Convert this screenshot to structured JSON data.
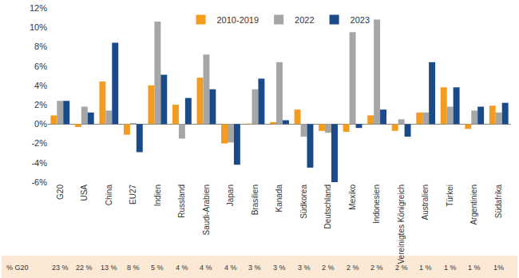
{
  "chart_data": {
    "type": "bar",
    "categories": [
      "G20",
      "USA",
      "China",
      "EU27",
      "Indien",
      "Russland",
      "Saudi-Arabien",
      "Japan",
      "Brasilien",
      "Kanada",
      "Südkorea",
      "Deutschland",
      "Mexiko",
      "Indonesien",
      "Vereinigtes Königreich",
      "Australien",
      "Türkei",
      "Argentinien",
      "Südafrika"
    ],
    "series": [
      {
        "name": "2010-2019",
        "color": "#f39c1f",
        "values": [
          0.9,
          -0.3,
          4.4,
          -1.1,
          4.0,
          2.0,
          4.8,
          -2.0,
          0.05,
          0.2,
          1.5,
          -0.7,
          -0.8,
          0.9,
          -0.7,
          1.2,
          3.8,
          -0.5,
          1.9
        ]
      },
      {
        "name": "2022",
        "color": "#a6a6a6",
        "values": [
          2.4,
          1.8,
          1.4,
          0.1,
          10.6,
          -1.5,
          7.2,
          -1.9,
          3.6,
          6.4,
          -1.3,
          -0.9,
          9.5,
          10.8,
          0.5,
          1.2,
          1.8,
          1.4,
          1.2
        ]
      },
      {
        "name": "2023",
        "color": "#1b4a8a",
        "values": [
          2.4,
          1.2,
          8.4,
          -2.9,
          5.1,
          2.7,
          3.6,
          -4.2,
          4.7,
          0.4,
          -4.5,
          -6.0,
          -0.4,
          1.5,
          -1.3,
          6.4,
          3.8,
          1.8,
          2.2
        ]
      }
    ],
    "ylim": [
      -6,
      12
    ],
    "yticks": [
      {
        "value": -6,
        "label": "-6%"
      },
      {
        "value": -4,
        "label": "-4%"
      },
      {
        "value": -2,
        "label": "-2%"
      },
      {
        "value": 0,
        "label": "0%"
      },
      {
        "value": 2,
        "label": "2%"
      },
      {
        "value": 4,
        "label": "4%"
      },
      {
        "value": 6,
        "label": "6%"
      },
      {
        "value": 8,
        "label": "8%"
      },
      {
        "value": 10,
        "label": "10%"
      },
      {
        "value": 12,
        "label": "12%"
      }
    ],
    "grid": false,
    "legend": "top",
    "footer_row": {
      "label": "% G20",
      "values": [
        23,
        22,
        13,
        8,
        5,
        4,
        4,
        4,
        3,
        3,
        3,
        2,
        2,
        2,
        2,
        1,
        1,
        1,
        1
      ],
      "value_labels": [
        "23 %",
        "22 %",
        "13 %",
        "8 %",
        "5 %",
        "4 %",
        "4 %",
        "4 %",
        "3 %",
        "3 %",
        "3 %",
        "2 %",
        "2 %",
        "2 %",
        "2 %",
        "1 %",
        "1 %",
        "1 %",
        "1%"
      ]
    }
  }
}
